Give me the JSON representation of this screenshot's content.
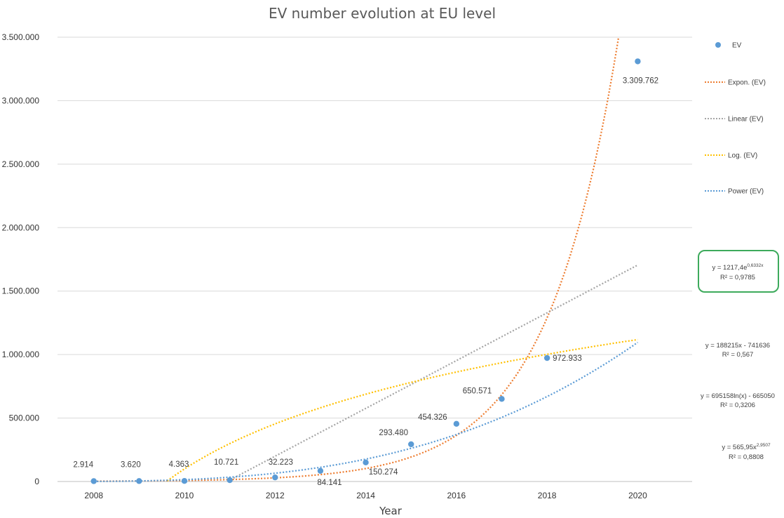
{
  "chart_data": {
    "type": "scatter",
    "title": "EV number evolution at EU level",
    "xlabel": "Year",
    "ylabel": "",
    "xlim": [
      2007.2,
      2021.2
    ],
    "ylim": [
      0,
      3500000
    ],
    "x_ticks": [
      "2008",
      "2010",
      "2012",
      "2014",
      "2016",
      "2018",
      "2020"
    ],
    "y_ticks": [
      {
        "value": 0,
        "label": "0"
      },
      {
        "value": 500000,
        "label": "500.000"
      },
      {
        "value": 1000000,
        "label": "1.000.000"
      },
      {
        "value": 1500000,
        "label": "1.500.000"
      },
      {
        "value": 2000000,
        "label": "2.000.000"
      },
      {
        "value": 2500000,
        "label": "2.500.000"
      },
      {
        "value": 3000000,
        "label": "3.000.000"
      },
      {
        "value": 3500000,
        "label": "3.500.000"
      }
    ],
    "grid": "horizontal",
    "legend_position": "right",
    "series": [
      {
        "name": "EV",
        "color": "#5B9BD5",
        "points": [
          {
            "x": 2008,
            "y": 2914,
            "label": "2.914"
          },
          {
            "x": 2009,
            "y": 3620,
            "label": "3.620"
          },
          {
            "x": 2010,
            "y": 4363,
            "label": "4.363"
          },
          {
            "x": 2011,
            "y": 10721,
            "label": "10.721"
          },
          {
            "x": 2012,
            "y": 32223,
            "label": "32.223"
          },
          {
            "x": 2013,
            "y": 84141,
            "label": "84.141"
          },
          {
            "x": 2014,
            "y": 150274,
            "label": "150.274"
          },
          {
            "x": 2015,
            "y": 293480,
            "label": "293.480"
          },
          {
            "x": 2016,
            "y": 454326,
            "label": "454.326"
          },
          {
            "x": 2017,
            "y": 650571,
            "label": "650.571"
          },
          {
            "x": 2018,
            "y": 972933,
            "label": "972.933"
          },
          {
            "x": 2020,
            "y": 3309762,
            "label": "3.309.762"
          }
        ]
      }
    ],
    "trendlines": [
      {
        "name": "Expon. (EV)",
        "color": "#ED7D31",
        "kind": "exponential",
        "a": 1217.4,
        "b": 0.6332,
        "eq_prefix": "y = 1217,4e",
        "eq_sup": "0,6332x",
        "r2": "R² = 0,9785",
        "highlighted": true,
        "clip_max": 3500000
      },
      {
        "name": "Linear (EV)",
        "color": "#A5A5A5",
        "kind": "linear",
        "a": 188215,
        "b": -741636,
        "eq": "y = 188215x - 741636",
        "r2": "R² = 0,567",
        "clip_min": 0
      },
      {
        "name": "Log. (EV)",
        "color": "#FFC000",
        "kind": "logarithmic",
        "a": 695158,
        "b": -665050,
        "eq": "y = 695158ln(x) - 665050",
        "r2": "R² = 0,3206",
        "clip_min": 0
      },
      {
        "name": "Power (EV)",
        "color": "#5B9BD5",
        "kind": "power",
        "a": 565.95,
        "b": 2.9507,
        "eq_prefix": "y = 565,95x",
        "eq_sup": "2,9507",
        "r2": "R² = 0,8808"
      }
    ],
    "highlight_color": "#3DAA5C"
  }
}
